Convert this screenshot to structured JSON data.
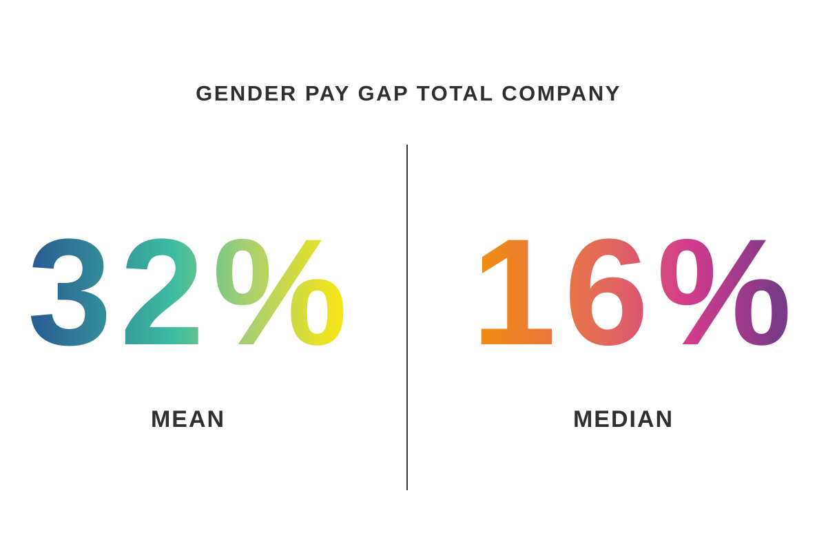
{
  "title": "GENDER PAY GAP TOTAL COMPANY",
  "stats": [
    {
      "value": "32%",
      "label": "MEAN"
    },
    {
      "value": "16%",
      "label": "MEDIAN"
    }
  ]
}
